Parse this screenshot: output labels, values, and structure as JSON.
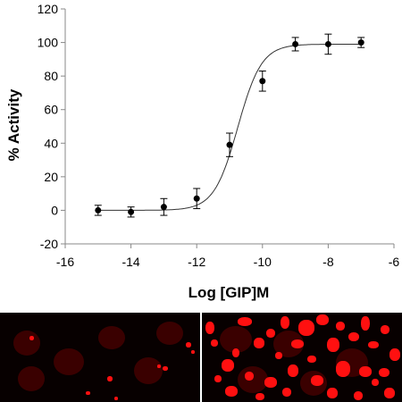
{
  "chart_data": {
    "type": "scatter",
    "title": "",
    "xlabel": "Log [GIP]M",
    "ylabel": "% Activity",
    "xlim": [
      -16,
      -6
    ],
    "ylim": [
      -20,
      120
    ],
    "x_ticks": [
      "-16",
      "-14",
      "-12",
      "-10",
      "-8",
      "-6"
    ],
    "y_ticks": [
      "-20",
      "0",
      "20",
      "40",
      "60",
      "80",
      "100",
      "120"
    ],
    "grid": false,
    "series": [
      {
        "x": [
          -15,
          -14,
          -13,
          -12,
          -11,
          -10,
          -9,
          -8,
          -7
        ],
        "y": [
          0,
          -1,
          2,
          7,
          39,
          77,
          99,
          99,
          100
        ],
        "error": [
          3,
          3,
          5,
          6,
          7,
          6,
          4,
          6,
          3
        ]
      }
    ],
    "fit_curve": {
      "bottom": 0,
      "top": 99,
      "log_ec50": -10.75,
      "hill": 1.2
    },
    "colors": {
      "points": "#000000",
      "curve": "#333333",
      "fluorescence": "#ff1010"
    }
  },
  "images": [
    {
      "description_id": "fluorescence-panel-left"
    },
    {
      "description_id": "fluorescence-panel-right"
    }
  ]
}
